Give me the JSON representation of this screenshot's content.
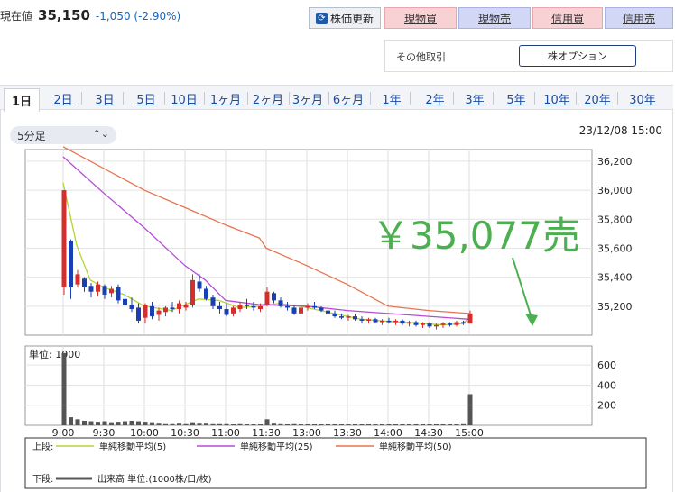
{
  "quote": {
    "label": "現在値",
    "price": "35,150",
    "change": "-1,050 (-2.90%)"
  },
  "toolbar": {
    "refresh_label": "株価更新",
    "buttons": [
      {
        "label": "現物買",
        "type": "buy"
      },
      {
        "label": "現物売",
        "type": "sell"
      },
      {
        "label": "信用買",
        "type": "buy"
      },
      {
        "label": "信用売",
        "type": "sell"
      }
    ]
  },
  "other_trade": {
    "label": "その他取引",
    "option_label": "株オプション"
  },
  "period_tabs": [
    "1日",
    "2日",
    "3日",
    "5日",
    "10日",
    "1ヶ月",
    "2ヶ月",
    "3ヶ月",
    "6ヶ月",
    "1年",
    "2年",
    "3年",
    "5年",
    "10年",
    "20年",
    "30年"
  ],
  "active_tab": "1日",
  "interval": {
    "selected": "5分足"
  },
  "datetime": "23/12/08 15:00",
  "annotation": {
    "text": "￥35,077売",
    "color": "#4caf50"
  },
  "colors": {
    "up": "#d32f2f",
    "down": "#1a3fb0",
    "ma5": "#b5d334",
    "ma25": "#b54bd6",
    "ma50": "#e8734f",
    "volume": "#555555"
  },
  "chart_data": {
    "type": "candlestick",
    "price_axis": {
      "ticks": [
        35200,
        35400,
        35600,
        35800,
        36000,
        36200
      ],
      "labels": [
        "35,200",
        "35,400",
        "35,600",
        "35,800",
        "36,000",
        "36,200"
      ],
      "range": [
        35000,
        36280
      ]
    },
    "volume_axis": {
      "ticks": [
        200,
        400,
        600
      ],
      "labels": [
        "200",
        "400",
        "600"
      ],
      "range": [
        0,
        790
      ],
      "unit_label": "単位: 1000"
    },
    "x_labels": [
      "9:00",
      "9:30",
      "10:00",
      "10:30",
      "11:00",
      "11:30",
      "13:00",
      "13:30",
      "14:00",
      "14:30",
      "15:00"
    ],
    "sessions": [
      {
        "start": "9:00",
        "end": "11:30"
      },
      {
        "start": "12:30",
        "end": "15:30"
      }
    ],
    "candles": [
      {
        "t": "9:00",
        "o": 35330,
        "h": 36000,
        "l": 35280,
        "c": 36000,
        "v": 720
      },
      {
        "t": "9:05",
        "o": 35650,
        "h": 35660,
        "l": 35250,
        "c": 35330,
        "v": 80
      },
      {
        "t": "9:10",
        "o": 35350,
        "h": 35450,
        "l": 35330,
        "c": 35420,
        "v": 60
      },
      {
        "t": "9:15",
        "o": 35390,
        "h": 35400,
        "l": 35300,
        "c": 35330,
        "v": 45
      },
      {
        "t": "9:20",
        "o": 35340,
        "h": 35360,
        "l": 35260,
        "c": 35300,
        "v": 40
      },
      {
        "t": "9:25",
        "o": 35300,
        "h": 35370,
        "l": 35270,
        "c": 35350,
        "v": 35
      },
      {
        "t": "9:30",
        "o": 35340,
        "h": 35350,
        "l": 35250,
        "c": 35280,
        "v": 40
      },
      {
        "t": "9:35",
        "o": 35290,
        "h": 35340,
        "l": 35260,
        "c": 35320,
        "v": 30
      },
      {
        "t": "9:40",
        "o": 35330,
        "h": 35350,
        "l": 35220,
        "c": 35240,
        "v": 35
      },
      {
        "t": "9:45",
        "o": 35250,
        "h": 35300,
        "l": 35200,
        "c": 35210,
        "v": 40
      },
      {
        "t": "9:50",
        "o": 35210,
        "h": 35260,
        "l": 35160,
        "c": 35180,
        "v": 45
      },
      {
        "t": "9:55",
        "o": 35190,
        "h": 35220,
        "l": 35080,
        "c": 35100,
        "v": 40
      },
      {
        "t": "10:00",
        "o": 35120,
        "h": 35220,
        "l": 35080,
        "c": 35210,
        "v": 35
      },
      {
        "t": "10:05",
        "o": 35200,
        "h": 35230,
        "l": 35110,
        "c": 35130,
        "v": 30
      },
      {
        "t": "10:10",
        "o": 35140,
        "h": 35190,
        "l": 35100,
        "c": 35170,
        "v": 25
      },
      {
        "t": "10:15",
        "o": 35160,
        "h": 35200,
        "l": 35130,
        "c": 35190,
        "v": 20
      },
      {
        "t": "10:20",
        "o": 35190,
        "h": 35230,
        "l": 35160,
        "c": 35180,
        "v": 20
      },
      {
        "t": "10:25",
        "o": 35180,
        "h": 35240,
        "l": 35150,
        "c": 35220,
        "v": 25
      },
      {
        "t": "10:30",
        "o": 35190,
        "h": 35230,
        "l": 35170,
        "c": 35210,
        "v": 20
      },
      {
        "t": "10:35",
        "o": 35210,
        "h": 35420,
        "l": 35190,
        "c": 35380,
        "v": 30
      },
      {
        "t": "10:40",
        "o": 35370,
        "h": 35420,
        "l": 35300,
        "c": 35320,
        "v": 25
      },
      {
        "t": "10:45",
        "o": 35320,
        "h": 35340,
        "l": 35240,
        "c": 35250,
        "v": 25
      },
      {
        "t": "10:50",
        "o": 35260,
        "h": 35280,
        "l": 35180,
        "c": 35200,
        "v": 20
      },
      {
        "t": "10:55",
        "o": 35200,
        "h": 35230,
        "l": 35150,
        "c": 35180,
        "v": 20
      },
      {
        "t": "11:00",
        "o": 35180,
        "h": 35220,
        "l": 35130,
        "c": 35140,
        "v": 20
      },
      {
        "t": "11:05",
        "o": 35150,
        "h": 35200,
        "l": 35130,
        "c": 35190,
        "v": 15
      },
      {
        "t": "11:10",
        "o": 35180,
        "h": 35230,
        "l": 35160,
        "c": 35210,
        "v": 20
      },
      {
        "t": "11:15",
        "o": 35210,
        "h": 35250,
        "l": 35180,
        "c": 35200,
        "v": 15
      },
      {
        "t": "11:20",
        "o": 35200,
        "h": 35230,
        "l": 35170,
        "c": 35190,
        "v": 15
      },
      {
        "t": "11:25",
        "o": 35180,
        "h": 35220,
        "l": 35160,
        "c": 35200,
        "v": 15
      },
      {
        "t": "12:30",
        "o": 35210,
        "h": 35330,
        "l": 35200,
        "c": 35300,
        "v": 60
      },
      {
        "t": "12:35",
        "o": 35290,
        "h": 35300,
        "l": 35220,
        "c": 35240,
        "v": 25
      },
      {
        "t": "12:40",
        "o": 35240,
        "h": 35260,
        "l": 35190,
        "c": 35200,
        "v": 20
      },
      {
        "t": "12:45",
        "o": 35200,
        "h": 35230,
        "l": 35170,
        "c": 35190,
        "v": 15
      },
      {
        "t": "12:50",
        "o": 35190,
        "h": 35210,
        "l": 35140,
        "c": 35150,
        "v": 20
      },
      {
        "t": "12:55",
        "o": 35150,
        "h": 35200,
        "l": 35140,
        "c": 35190,
        "v": 15
      },
      {
        "t": "13:00",
        "o": 35190,
        "h": 35220,
        "l": 35170,
        "c": 35200,
        "v": 15
      },
      {
        "t": "13:05",
        "o": 35200,
        "h": 35230,
        "l": 35180,
        "c": 35190,
        "v": 15
      },
      {
        "t": "13:10",
        "o": 35190,
        "h": 35200,
        "l": 35160,
        "c": 35170,
        "v": 15
      },
      {
        "t": "13:15",
        "o": 35170,
        "h": 35190,
        "l": 35140,
        "c": 35150,
        "v": 15
      },
      {
        "t": "13:20",
        "o": 35150,
        "h": 35170,
        "l": 35120,
        "c": 35130,
        "v": 15
      },
      {
        "t": "13:25",
        "o": 35130,
        "h": 35150,
        "l": 35110,
        "c": 35120,
        "v": 15
      },
      {
        "t": "13:30",
        "o": 35120,
        "h": 35140,
        "l": 35100,
        "c": 35130,
        "v": 15
      },
      {
        "t": "13:35",
        "o": 35130,
        "h": 35150,
        "l": 35100,
        "c": 35110,
        "v": 15
      },
      {
        "t": "13:40",
        "o": 35110,
        "h": 35130,
        "l": 35080,
        "c": 35100,
        "v": 15
      },
      {
        "t": "13:45",
        "o": 35100,
        "h": 35120,
        "l": 35080,
        "c": 35110,
        "v": 15
      },
      {
        "t": "13:50",
        "o": 35110,
        "h": 35120,
        "l": 35080,
        "c": 35090,
        "v": 15
      },
      {
        "t": "13:55",
        "o": 35090,
        "h": 35110,
        "l": 35070,
        "c": 35100,
        "v": 15
      },
      {
        "t": "14:00",
        "o": 35100,
        "h": 35120,
        "l": 35080,
        "c": 35090,
        "v": 15
      },
      {
        "t": "14:05",
        "o": 35090,
        "h": 35110,
        "l": 35070,
        "c": 35100,
        "v": 15
      },
      {
        "t": "14:10",
        "o": 35100,
        "h": 35110,
        "l": 35070,
        "c": 35080,
        "v": 15
      },
      {
        "t": "14:15",
        "o": 35080,
        "h": 35100,
        "l": 35060,
        "c": 35090,
        "v": 15
      },
      {
        "t": "14:20",
        "o": 35090,
        "h": 35100,
        "l": 35060,
        "c": 35070,
        "v": 15
      },
      {
        "t": "14:25",
        "o": 35070,
        "h": 35090,
        "l": 35050,
        "c": 35080,
        "v": 15
      },
      {
        "t": "14:30",
        "o": 35080,
        "h": 35090,
        "l": 35050,
        "c": 35060,
        "v": 15
      },
      {
        "t": "14:35",
        "o": 35060,
        "h": 35080,
        "l": 35040,
        "c": 35070,
        "v": 15
      },
      {
        "t": "14:40",
        "o": 35070,
        "h": 35090,
        "l": 35050,
        "c": 35080,
        "v": 15
      },
      {
        "t": "14:45",
        "o": 35080,
        "h": 35090,
        "l": 35060,
        "c": 35070,
        "v": 15
      },
      {
        "t": "14:50",
        "o": 35070,
        "h": 35100,
        "l": 35060,
        "c": 35090,
        "v": 15
      },
      {
        "t": "14:55",
        "o": 35090,
        "h": 35100,
        "l": 35070,
        "c": 35080,
        "v": 20
      },
      {
        "t": "15:00",
        "o": 35080,
        "h": 35170,
        "l": 35080,
        "c": 35150,
        "v": 310
      }
    ],
    "ma": [
      {
        "name": "単純移動平均(5)",
        "color": "#b5d334",
        "points": [
          [
            "9:00",
            36050
          ],
          [
            "9:10",
            35620
          ],
          [
            "9:20",
            35380
          ],
          [
            "9:30",
            35330
          ],
          [
            "9:45",
            35280
          ],
          [
            "10:00",
            35200
          ],
          [
            "10:20",
            35170
          ],
          [
            "10:40",
            35250
          ],
          [
            "10:55",
            35240
          ],
          [
            "11:10",
            35190
          ],
          [
            "11:25",
            35200
          ],
          [
            "12:40",
            35220
          ],
          [
            "13:00",
            35190
          ],
          [
            "13:20",
            35150
          ],
          [
            "13:40",
            35110
          ],
          [
            "14:00",
            35095
          ],
          [
            "14:20",
            35085
          ],
          [
            "14:40",
            35070
          ],
          [
            "14:55",
            35080
          ],
          [
            "15:00",
            35120
          ]
        ]
      },
      {
        "name": "単純移動平均(25)",
        "color": "#b54bd6",
        "points": [
          [
            "9:00",
            36230
          ],
          [
            "9:30",
            35980
          ],
          [
            "10:00",
            35740
          ],
          [
            "10:30",
            35480
          ],
          [
            "10:45",
            35380
          ],
          [
            "11:00",
            35240
          ],
          [
            "11:25",
            35210
          ],
          [
            "12:30",
            35210
          ],
          [
            "13:00",
            35200
          ],
          [
            "13:30",
            35170
          ],
          [
            "14:00",
            35150
          ],
          [
            "14:30",
            35130
          ],
          [
            "15:00",
            35110
          ]
        ]
      },
      {
        "name": "単純移動平均(50)",
        "color": "#e8734f",
        "points": [
          [
            "9:00",
            36300
          ],
          [
            "10:00",
            36000
          ],
          [
            "10:30",
            35880
          ],
          [
            "11:00",
            35760
          ],
          [
            "11:25",
            35670
          ],
          [
            "12:30",
            35600
          ],
          [
            "13:00",
            35480
          ],
          [
            "13:30",
            35350
          ],
          [
            "14:00",
            35200
          ],
          [
            "14:30",
            35170
          ],
          [
            "15:00",
            35150
          ]
        ]
      }
    ],
    "legend": {
      "upper_label": "上段:",
      "lower_label": "下段:",
      "volume_name": "出来高 単位:(1000株/口/枚)"
    }
  }
}
